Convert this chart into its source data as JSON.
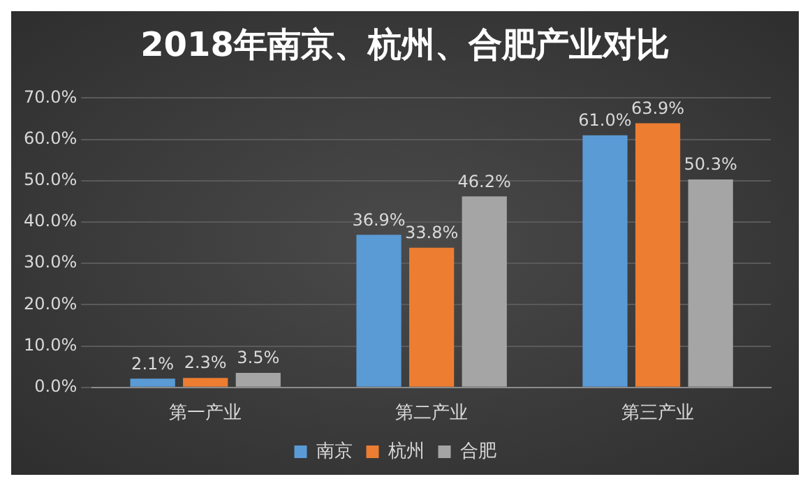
{
  "chart_data": {
    "type": "bar",
    "title": "2018年南京、杭州、合肥产业对比",
    "categories": [
      "第一产业",
      "第二产业",
      "第三产业"
    ],
    "series": [
      {
        "name": "南京",
        "color": "#5b9bd5",
        "values": [
          2.1,
          36.9,
          61.0
        ],
        "value_labels": [
          "2.1%",
          "36.9%",
          "61.0%"
        ]
      },
      {
        "name": "杭州",
        "color": "#ed7d31",
        "values": [
          2.3,
          33.8,
          63.9
        ],
        "value_labels": [
          "2.3%",
          "33.8%",
          "63.9%"
        ]
      },
      {
        "name": "合肥",
        "color": "#a5a5a5",
        "values": [
          3.5,
          46.2,
          50.3
        ],
        "value_labels": [
          "3.5%",
          "46.2%",
          "50.3%"
        ]
      }
    ],
    "ylim": [
      0,
      70
    ],
    "yticks": [
      {
        "value": 0,
        "label": "0.0%"
      },
      {
        "value": 10,
        "label": "10.0%"
      },
      {
        "value": 20,
        "label": "20.0%"
      },
      {
        "value": 30,
        "label": "30.0%"
      },
      {
        "value": 40,
        "label": "40.0%"
      },
      {
        "value": 50,
        "label": "50.0%"
      },
      {
        "value": 60,
        "label": "60.0%"
      },
      {
        "value": 70,
        "label": "70.0%"
      }
    ],
    "grid": "y",
    "legend": "bottom"
  }
}
